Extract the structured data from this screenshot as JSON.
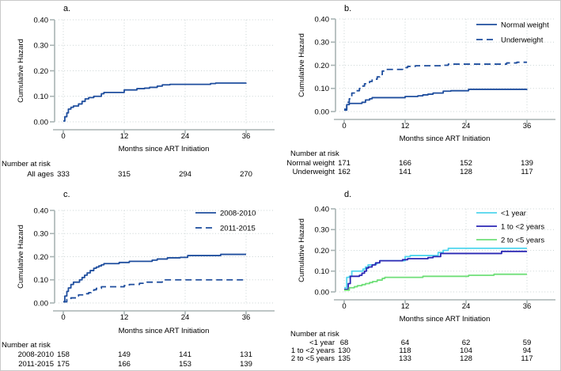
{
  "figure_title": "Cumulative hazard of events after ART initiation, four-panel figure",
  "colors": {
    "axis": "#a9b4b4",
    "grid": "#c9d3d3",
    "text": "#000000",
    "navy": "#1f4e9e",
    "cyan": "#4fd5ed",
    "indigo": "#2b27b4",
    "green": "#6fdf78"
  },
  "chart_data": [
    {
      "type": "line",
      "title": "a.",
      "xlabel": "Months since ART Initiation",
      "ylabel": "Cumulative Hazard",
      "xlim": [
        0,
        36
      ],
      "ylim": [
        0,
        0.4
      ],
      "grid": true,
      "xticks": [
        0,
        12,
        24,
        36
      ],
      "xtick_labels": [
        "0",
        "12",
        "24",
        "36"
      ],
      "yticks": [
        0,
        0.1,
        0.2,
        0.3,
        0.4
      ],
      "ytick_labels": [
        "0.00",
        "0.10",
        "0.20",
        "0.30",
        "0.40"
      ],
      "legend_position": "none",
      "series": [
        {
          "name": "All ages",
          "color": "#1f4e9e",
          "dash": "solid",
          "x": [
            0,
            0.3,
            0.7,
            1,
            1.5,
            2,
            3,
            3.7,
            4.3,
            5,
            6,
            7.5,
            8,
            12,
            14.5,
            16,
            17,
            18.5,
            19.5,
            21,
            29,
            30,
            36
          ],
          "y": [
            0.003,
            0.02,
            0.035,
            0.05,
            0.057,
            0.062,
            0.07,
            0.08,
            0.09,
            0.095,
            0.1,
            0.11,
            0.115,
            0.125,
            0.13,
            0.132,
            0.135,
            0.14,
            0.145,
            0.147,
            0.15,
            0.152,
            0.153
          ]
        }
      ],
      "number_at_risk": {
        "title": "Number at risk",
        "months": [
          0,
          12,
          24,
          36
        ],
        "rows": [
          {
            "label": "All ages",
            "values": [
              "333",
              "315",
              "294",
              "270"
            ]
          }
        ]
      }
    },
    {
      "type": "line",
      "title": "b.",
      "xlabel": "Months since ART Initiation",
      "ylabel": "Cumulative Hazard",
      "xlim": [
        0,
        36
      ],
      "ylim": [
        0,
        0.4
      ],
      "grid": true,
      "xticks": [
        0,
        12,
        24,
        36
      ],
      "xtick_labels": [
        "0",
        "12",
        "24",
        "36"
      ],
      "yticks": [
        0,
        0.1,
        0.2,
        0.3,
        0.4
      ],
      "ytick_labels": [
        "0.00",
        "0.10",
        "0.20",
        "0.30",
        "0.40"
      ],
      "legend_position": "top-right",
      "series": [
        {
          "name": "Normal weight",
          "color": "#1f4e9e",
          "dash": "solid",
          "x": [
            0,
            0.5,
            1,
            3.5,
            4.2,
            5,
            5.5,
            12,
            14.5,
            15.5,
            16.5,
            17.5,
            19.5,
            21,
            24.5,
            36
          ],
          "y": [
            0.006,
            0.03,
            0.035,
            0.04,
            0.05,
            0.055,
            0.06,
            0.065,
            0.068,
            0.072,
            0.075,
            0.08,
            0.088,
            0.09,
            0.096,
            0.097
          ]
        },
        {
          "name": "Underweight",
          "color": "#1f4e9e",
          "dash": "dashed",
          "x": [
            0,
            0.5,
            1,
            1.5,
            2,
            3,
            3.5,
            4,
            5,
            5.5,
            6.5,
            7,
            7.5,
            8,
            11.5,
            12.5,
            14,
            19.5,
            20.5,
            32,
            34,
            36
          ],
          "y": [
            0.01,
            0.04,
            0.055,
            0.08,
            0.09,
            0.1,
            0.11,
            0.12,
            0.13,
            0.14,
            0.15,
            0.16,
            0.175,
            0.182,
            0.19,
            0.195,
            0.198,
            0.2,
            0.205,
            0.21,
            0.213,
            0.213
          ]
        }
      ],
      "number_at_risk": {
        "title": "Number at risk",
        "months": [
          0,
          12,
          24,
          36
        ],
        "rows": [
          {
            "label": "Normal weight",
            "values": [
              "171",
              "166",
              "152",
              "139"
            ]
          },
          {
            "label": "Underweight",
            "values": [
              "162",
              "141",
              "128",
              "117"
            ]
          }
        ]
      }
    },
    {
      "type": "line",
      "title": "c.",
      "xlabel": "Months since ART Initiation",
      "ylabel": "Cumulative Hazard",
      "xlim": [
        0,
        36
      ],
      "ylim": [
        0,
        0.4
      ],
      "grid": true,
      "xticks": [
        0,
        12,
        24,
        36
      ],
      "xtick_labels": [
        "0",
        "12",
        "24",
        "36"
      ],
      "yticks": [
        0,
        0.1,
        0.2,
        0.3,
        0.4
      ],
      "ytick_labels": [
        "0.00",
        "0.10",
        "0.20",
        "0.30",
        "0.40"
      ],
      "legend_position": "top-right",
      "series": [
        {
          "name": "2008-2010",
          "color": "#1f4e9e",
          "dash": "solid",
          "x": [
            0,
            0.3,
            0.7,
            1,
            1.5,
            2,
            3.2,
            3.7,
            4.2,
            4.7,
            5.3,
            6,
            6.5,
            7,
            7.5,
            8,
            11,
            13,
            17.5,
            18.5,
            20.5,
            23,
            24.5,
            31,
            36
          ],
          "y": [
            0.006,
            0.03,
            0.05,
            0.065,
            0.08,
            0.09,
            0.1,
            0.11,
            0.12,
            0.13,
            0.14,
            0.15,
            0.155,
            0.16,
            0.165,
            0.17,
            0.175,
            0.18,
            0.185,
            0.19,
            0.195,
            0.197,
            0.205,
            0.21,
            0.21
          ]
        },
        {
          "name": "2011-2015",
          "color": "#1f4e9e",
          "dash": "dashed",
          "x": [
            0,
            0.7,
            1.5,
            2.5,
            3,
            4,
            5,
            5.5,
            6,
            6.5,
            7.5,
            12,
            13,
            15,
            16.5,
            19.5,
            36
          ],
          "y": [
            0.005,
            0.015,
            0.022,
            0.03,
            0.035,
            0.04,
            0.045,
            0.05,
            0.057,
            0.063,
            0.07,
            0.075,
            0.08,
            0.085,
            0.09,
            0.1,
            0.102
          ]
        }
      ],
      "number_at_risk": {
        "title": "Number at risk",
        "months": [
          0,
          12,
          24,
          36
        ],
        "rows": [
          {
            "label": "2008-2010",
            "values": [
              "158",
              "149",
              "141",
              "131"
            ]
          },
          {
            "label": "2011-2015",
            "values": [
              "175",
              "166",
              "153",
              "139"
            ]
          }
        ]
      }
    },
    {
      "type": "line",
      "title": "d.",
      "xlabel": "Months since ART Initiation",
      "ylabel": "Cumulative Hazard",
      "xlim": [
        0,
        36
      ],
      "ylim": [
        0,
        0.4
      ],
      "grid": true,
      "xticks": [
        0,
        12,
        24,
        36
      ],
      "xtick_labels": [
        "0",
        "12",
        "24",
        "36"
      ],
      "yticks": [
        0,
        0.1,
        0.2,
        0.3,
        0.4
      ],
      "ytick_labels": [
        "0.00",
        "0.10",
        "0.20",
        "0.30",
        "0.40"
      ],
      "legend_position": "top-right",
      "series": [
        {
          "name": "<1 year",
          "color": "#4fd5ed",
          "dash": "solid",
          "x": [
            0,
            0.5,
            1,
            1.5,
            3.7,
            4.2,
            4.7,
            6,
            6.5,
            7,
            12,
            13,
            18.5,
            19.5,
            20.5,
            36
          ],
          "y": [
            0.02,
            0.07,
            0.075,
            0.1,
            0.11,
            0.12,
            0.13,
            0.135,
            0.14,
            0.15,
            0.17,
            0.175,
            0.19,
            0.2,
            0.21,
            0.21
          ]
        },
        {
          "name": "1 to <2 years",
          "color": "#2b27b4",
          "dash": "solid",
          "x": [
            0,
            0.8,
            1.2,
            3,
            3.5,
            4,
            4.4,
            4.8,
            5.5,
            6.2,
            7,
            11.5,
            12.5,
            16.5,
            17.5,
            19,
            31,
            36
          ],
          "y": [
            0.012,
            0.04,
            0.075,
            0.08,
            0.09,
            0.1,
            0.115,
            0.12,
            0.13,
            0.14,
            0.15,
            0.155,
            0.16,
            0.165,
            0.17,
            0.185,
            0.195,
            0.195
          ]
        },
        {
          "name": "2 to <5 years",
          "color": "#6fdf78",
          "dash": "solid",
          "x": [
            0,
            1,
            2,
            2.6,
            3.5,
            4.2,
            5,
            5.6,
            6.5,
            7.5,
            8,
            15.5,
            24.5,
            29.5,
            36
          ],
          "y": [
            0.008,
            0.02,
            0.025,
            0.03,
            0.035,
            0.04,
            0.045,
            0.05,
            0.057,
            0.065,
            0.07,
            0.075,
            0.08,
            0.085,
            0.085
          ]
        }
      ],
      "number_at_risk": {
        "title": "Number at risk",
        "months": [
          0,
          12,
          24,
          36
        ],
        "rows": [
          {
            "label": "<1 year",
            "values": [
              "68",
              "64",
              "62",
              "59"
            ]
          },
          {
            "label": "1 to <2 years",
            "values": [
              "130",
              "118",
              "104",
              "94"
            ]
          },
          {
            "label": "2 to <5 years",
            "values": [
              "135",
              "133",
              "128",
              "117"
            ]
          }
        ]
      }
    }
  ]
}
